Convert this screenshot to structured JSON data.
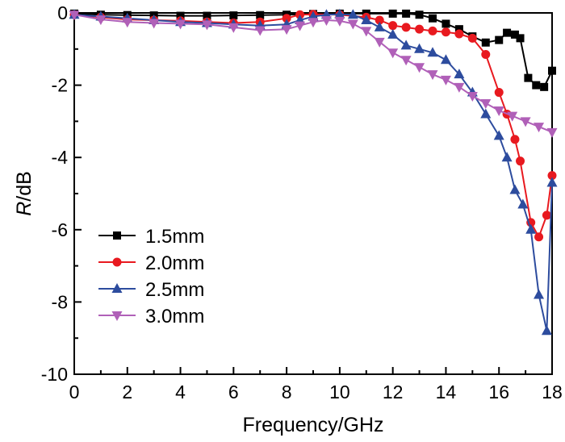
{
  "chart_data": {
    "type": "line",
    "title": "",
    "xlabel": "Frequency/GHz",
    "ylabel_italic": "R",
    "ylabel_rest": "/dB",
    "xlim": [
      0,
      18
    ],
    "ylim": [
      -10,
      0
    ],
    "xticks": [
      0,
      2,
      4,
      6,
      8,
      10,
      12,
      14,
      16,
      18
    ],
    "yticks": [
      0,
      -2,
      -4,
      -6,
      -8,
      -10
    ],
    "xtick_labels": [
      "0",
      "2",
      "4",
      "6",
      "8",
      "10",
      "12",
      "14",
      "16",
      "18"
    ],
    "ytick_labels": [
      "0",
      "-2",
      "-4",
      "-6",
      "-8",
      "-10"
    ],
    "grid": false,
    "legend_position": "bottom-left",
    "series": [
      {
        "name": "1.5mm",
        "color": "#000000",
        "marker": "square",
        "points": [
          [
            0,
            -0.02
          ],
          [
            1,
            -0.05
          ],
          [
            2,
            -0.06
          ],
          [
            3,
            -0.07
          ],
          [
            4,
            -0.08
          ],
          [
            5,
            -0.08
          ],
          [
            6,
            -0.07
          ],
          [
            7,
            -0.06
          ],
          [
            8,
            -0.05
          ],
          [
            9,
            -0.03
          ],
          [
            10,
            -0.02
          ],
          [
            11,
            -0.02
          ],
          [
            12,
            -0.02
          ],
          [
            12.5,
            -0.02
          ],
          [
            13,
            -0.05
          ],
          [
            13.5,
            -0.15
          ],
          [
            14,
            -0.3
          ],
          [
            14.5,
            -0.45
          ],
          [
            15,
            -0.65
          ],
          [
            15.5,
            -0.82
          ],
          [
            16,
            -0.75
          ],
          [
            16.3,
            -0.55
          ],
          [
            16.6,
            -0.6
          ],
          [
            16.8,
            -0.7
          ],
          [
            17.1,
            -1.8
          ],
          [
            17.4,
            -2.0
          ],
          [
            17.7,
            -2.05
          ],
          [
            18,
            -1.6
          ]
        ]
      },
      {
        "name": "2.0mm",
        "color": "#e8191f",
        "marker": "circle",
        "points": [
          [
            0,
            -0.05
          ],
          [
            1,
            -0.12
          ],
          [
            2,
            -0.18
          ],
          [
            3,
            -0.2
          ],
          [
            4,
            -0.22
          ],
          [
            5,
            -0.25
          ],
          [
            6,
            -0.28
          ],
          [
            7,
            -0.25
          ],
          [
            8,
            -0.15
          ],
          [
            8.5,
            -0.05
          ],
          [
            9,
            -0.04
          ],
          [
            10,
            -0.05
          ],
          [
            11,
            -0.12
          ],
          [
            11.5,
            -0.2
          ],
          [
            12,
            -0.35
          ],
          [
            12.5,
            -0.4
          ],
          [
            13,
            -0.45
          ],
          [
            13.5,
            -0.5
          ],
          [
            14,
            -0.53
          ],
          [
            14.5,
            -0.58
          ],
          [
            15,
            -0.7
          ],
          [
            15.5,
            -1.15
          ],
          [
            16,
            -2.2
          ],
          [
            16.3,
            -2.8
          ],
          [
            16.6,
            -3.5
          ],
          [
            16.8,
            -4.1
          ],
          [
            17.2,
            -5.8
          ],
          [
            17.5,
            -6.2
          ],
          [
            17.8,
            -5.6
          ],
          [
            18,
            -4.5
          ]
        ]
      },
      {
        "name": "2.5mm",
        "color": "#2d4c9e",
        "marker": "triangle-up",
        "points": [
          [
            0,
            -0.05
          ],
          [
            1,
            -0.1
          ],
          [
            2,
            -0.15
          ],
          [
            3,
            -0.2
          ],
          [
            4,
            -0.25
          ],
          [
            5,
            -0.28
          ],
          [
            6,
            -0.32
          ],
          [
            7,
            -0.35
          ],
          [
            8,
            -0.32
          ],
          [
            8.5,
            -0.2
          ],
          [
            9,
            -0.1
          ],
          [
            9.5,
            -0.05
          ],
          [
            10,
            -0.04
          ],
          [
            10.5,
            -0.05
          ],
          [
            11,
            -0.2
          ],
          [
            11.5,
            -0.4
          ],
          [
            12,
            -0.6
          ],
          [
            12.5,
            -0.9
          ],
          [
            13,
            -1.0
          ],
          [
            13.5,
            -1.1
          ],
          [
            14,
            -1.3
          ],
          [
            14.5,
            -1.7
          ],
          [
            15,
            -2.2
          ],
          [
            15.5,
            -2.8
          ],
          [
            16,
            -3.4
          ],
          [
            16.3,
            -4.0
          ],
          [
            16.6,
            -4.9
          ],
          [
            16.9,
            -5.3
          ],
          [
            17.2,
            -6.0
          ],
          [
            17.5,
            -7.8
          ],
          [
            17.8,
            -8.8
          ],
          [
            18,
            -4.7
          ]
        ]
      },
      {
        "name": "3.0mm",
        "color": "#b060b8",
        "marker": "triangle-down",
        "points": [
          [
            0,
            -0.05
          ],
          [
            1,
            -0.18
          ],
          [
            2,
            -0.25
          ],
          [
            3,
            -0.28
          ],
          [
            4,
            -0.3
          ],
          [
            5,
            -0.32
          ],
          [
            6,
            -0.4
          ],
          [
            7,
            -0.48
          ],
          [
            8,
            -0.45
          ],
          [
            8.5,
            -0.35
          ],
          [
            9,
            -0.25
          ],
          [
            9.5,
            -0.2
          ],
          [
            10,
            -0.22
          ],
          [
            10.5,
            -0.3
          ],
          [
            11,
            -0.5
          ],
          [
            11.5,
            -0.8
          ],
          [
            12,
            -1.1
          ],
          [
            12.5,
            -1.3
          ],
          [
            13,
            -1.5
          ],
          [
            13.5,
            -1.7
          ],
          [
            14,
            -1.85
          ],
          [
            14.5,
            -2.05
          ],
          [
            15,
            -2.3
          ],
          [
            15.5,
            -2.5
          ],
          [
            16,
            -2.7
          ],
          [
            16.5,
            -2.85
          ],
          [
            17,
            -3.0
          ],
          [
            17.5,
            -3.15
          ],
          [
            18,
            -3.3
          ]
        ]
      }
    ]
  }
}
